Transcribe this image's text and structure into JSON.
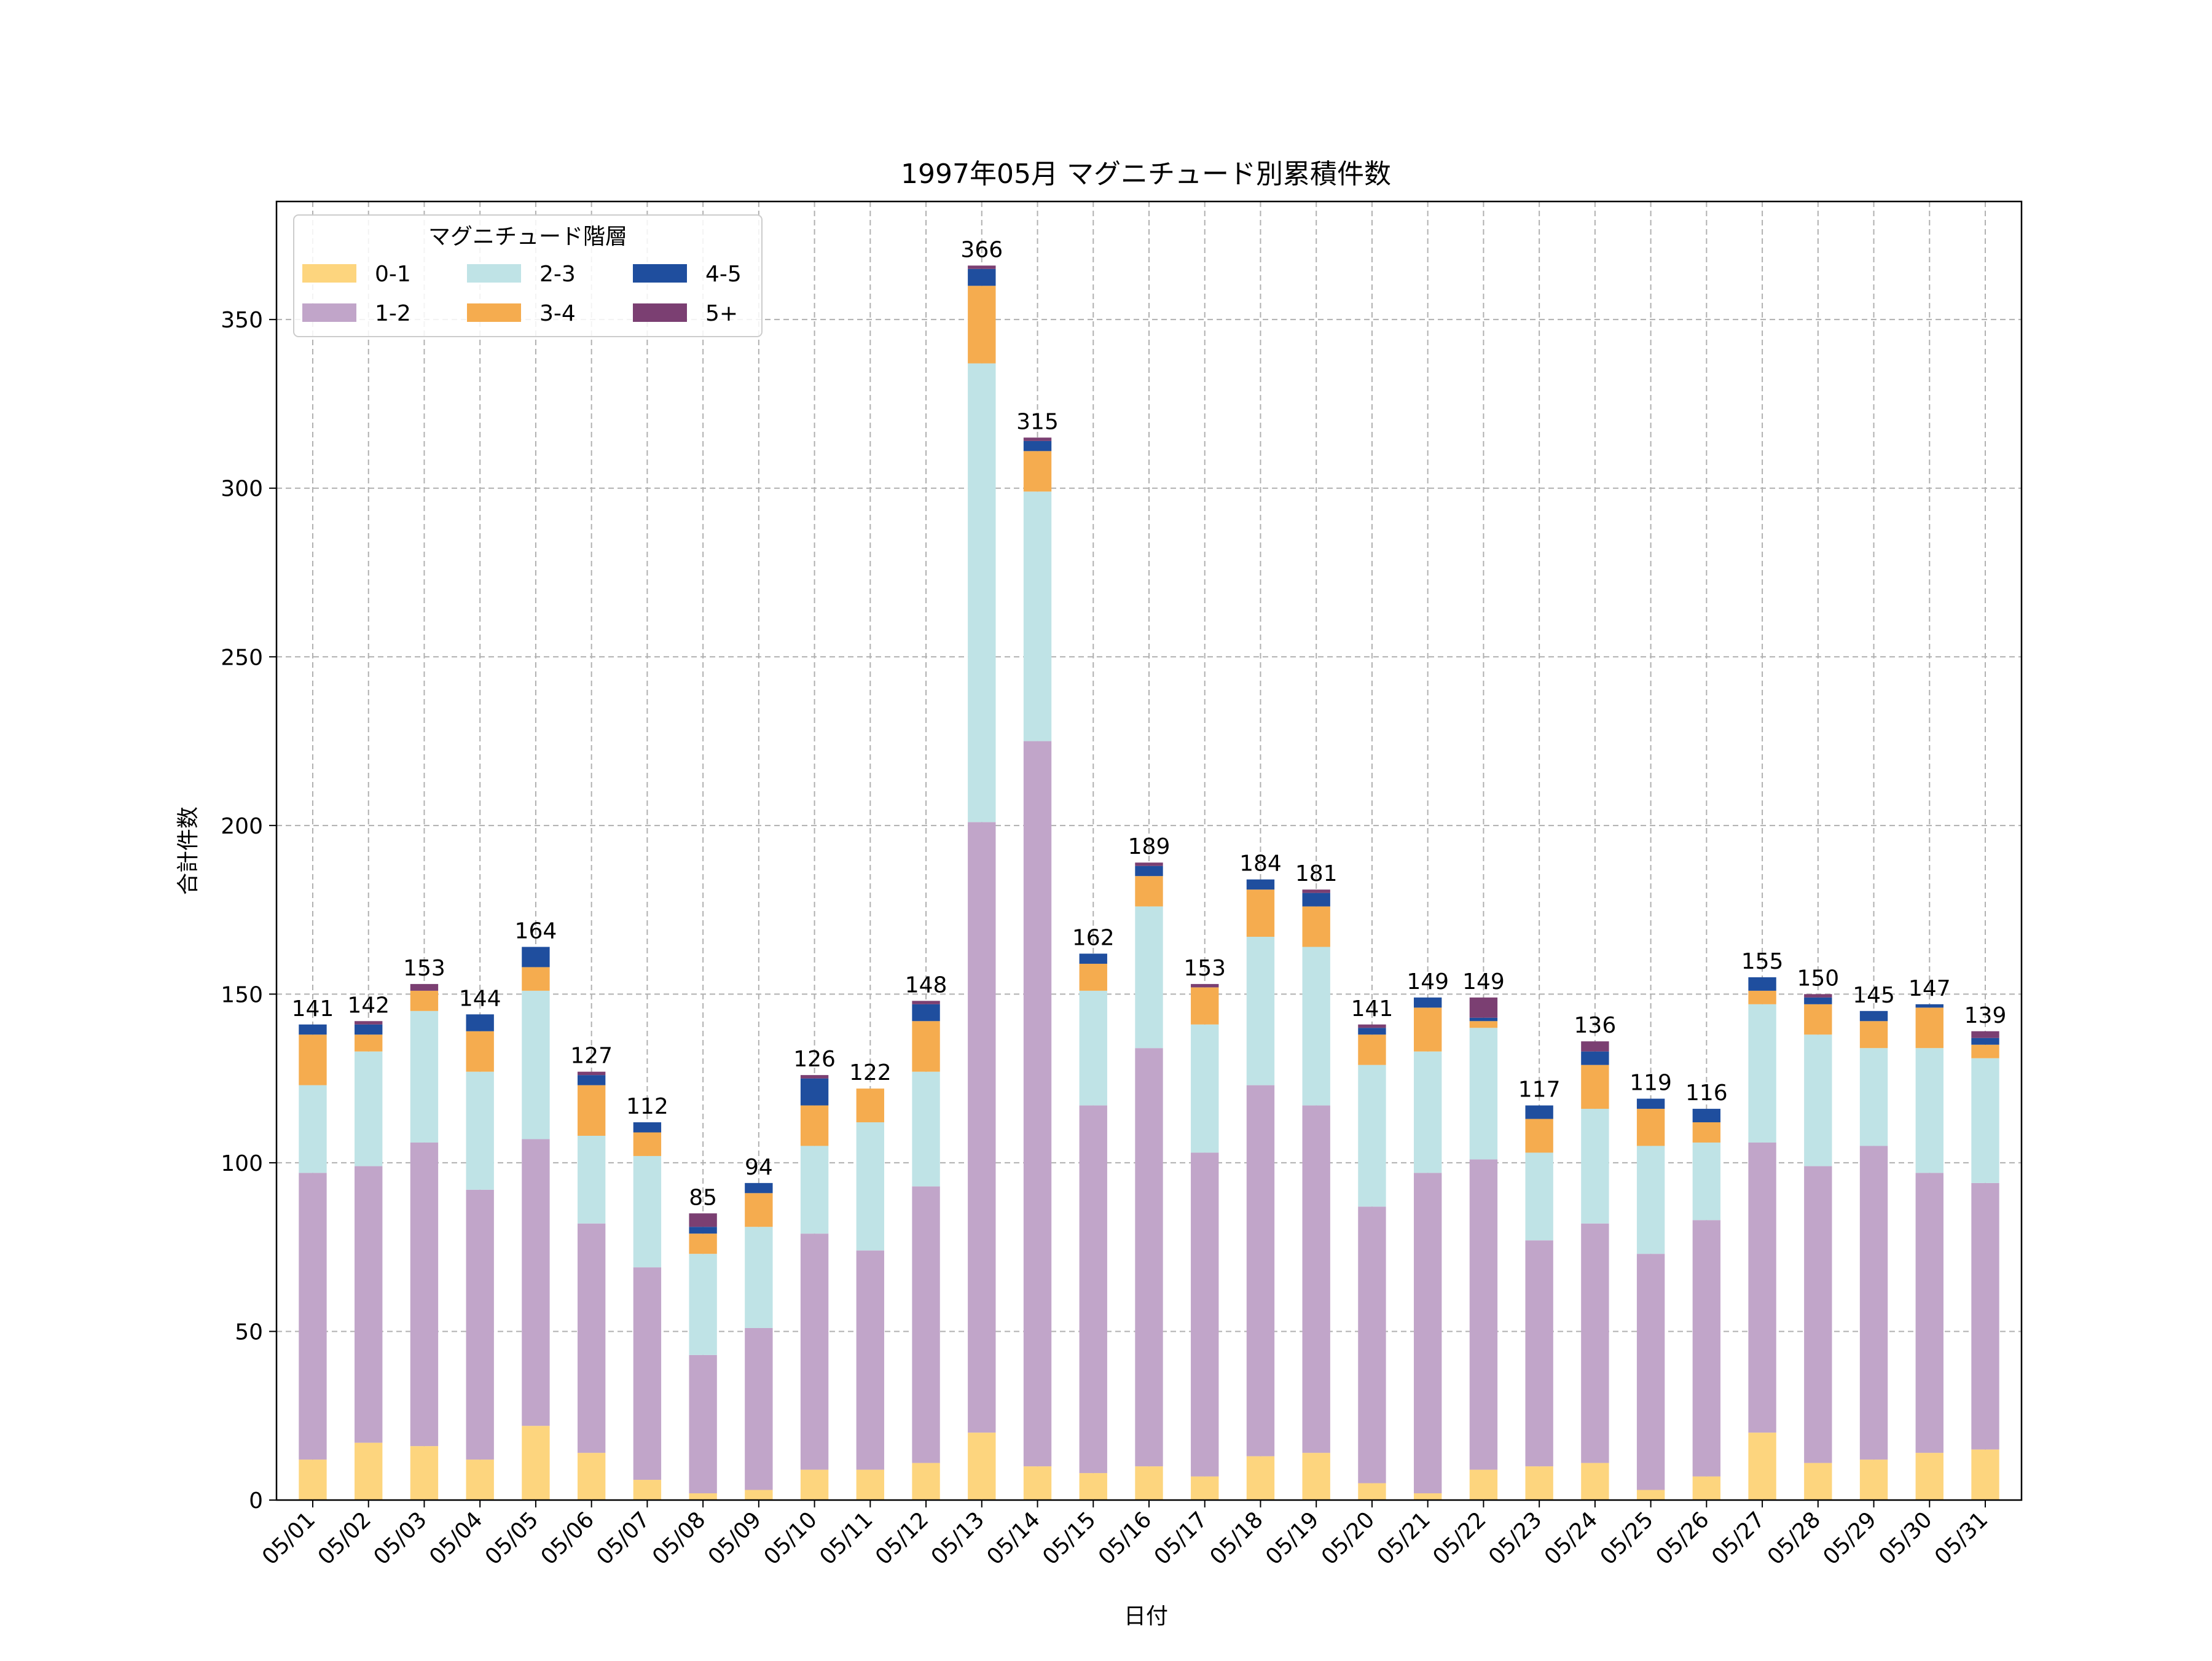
{
  "chart_data": {
    "type": "bar",
    "stacked": true,
    "title": "1997年05月 マグニチュード別累積件数",
    "xlabel": "日付",
    "ylabel": "合計件数",
    "ylim": [
      0,
      385
    ],
    "yticks": [
      0,
      50,
      100,
      150,
      200,
      250,
      300,
      350
    ],
    "grid": true,
    "legend": {
      "title": "マグニチュード階層",
      "placement": "top-left",
      "columns": 3
    },
    "categories": [
      "05/01",
      "05/02",
      "05/03",
      "05/04",
      "05/05",
      "05/06",
      "05/07",
      "05/08",
      "05/09",
      "05/10",
      "05/11",
      "05/12",
      "05/13",
      "05/14",
      "05/15",
      "05/16",
      "05/17",
      "05/18",
      "05/19",
      "05/20",
      "05/21",
      "05/22",
      "05/23",
      "05/24",
      "05/25",
      "05/26",
      "05/27",
      "05/28",
      "05/29",
      "05/30",
      "05/31"
    ],
    "series": [
      {
        "name": "0-1",
        "color": "#FDD57E",
        "values": [
          12,
          17,
          16,
          12,
          22,
          14,
          6,
          2,
          3,
          9,
          9,
          11,
          20,
          10,
          8,
          10,
          7,
          13,
          14,
          5,
          2,
          9,
          10,
          11,
          3,
          7,
          20,
          11,
          12,
          14,
          15
        ]
      },
      {
        "name": "1-2",
        "color": "#C1A5C9",
        "values": [
          85,
          82,
          90,
          80,
          85,
          68,
          63,
          41,
          48,
          70,
          65,
          82,
          181,
          215,
          109,
          124,
          96,
          110,
          103,
          82,
          95,
          92,
          67,
          71,
          70,
          76,
          86,
          88,
          93,
          83,
          79
        ]
      },
      {
        "name": "2-3",
        "color": "#BFE3E6",
        "values": [
          26,
          34,
          39,
          35,
          44,
          26,
          33,
          30,
          30,
          26,
          38,
          34,
          136,
          74,
          34,
          42,
          38,
          44,
          47,
          42,
          36,
          39,
          26,
          34,
          32,
          23,
          41,
          39,
          29,
          37,
          37
        ]
      },
      {
        "name": "3-4",
        "color": "#F5AC4F",
        "values": [
          15,
          5,
          6,
          12,
          7,
          15,
          7,
          6,
          10,
          12,
          10,
          15,
          23,
          12,
          8,
          9,
          11,
          14,
          12,
          9,
          13,
          2,
          10,
          13,
          11,
          6,
          4,
          9,
          8,
          12,
          4
        ]
      },
      {
        "name": "4-5",
        "color": "#1F4E9E",
        "values": [
          3,
          3,
          0,
          5,
          6,
          3,
          3,
          2,
          3,
          8,
          0,
          5,
          5,
          3,
          3,
          3,
          0,
          3,
          4,
          2,
          3,
          1,
          4,
          4,
          3,
          4,
          4,
          2,
          3,
          1,
          2
        ]
      },
      {
        "name": "5+",
        "color": "#7B3F72",
        "values": [
          0,
          1,
          2,
          0,
          0,
          1,
          0,
          4,
          0,
          1,
          0,
          1,
          1,
          1,
          0,
          1,
          1,
          0,
          1,
          1,
          0,
          6,
          0,
          3,
          0,
          0,
          0,
          1,
          0,
          0,
          2
        ]
      }
    ],
    "totals": [
      141,
      142,
      153,
      144,
      164,
      127,
      112,
      85,
      94,
      126,
      122,
      148,
      366,
      315,
      162,
      189,
      153,
      184,
      181,
      141,
      149,
      149,
      117,
      136,
      119,
      116,
      155,
      150,
      145,
      147,
      139
    ]
  }
}
